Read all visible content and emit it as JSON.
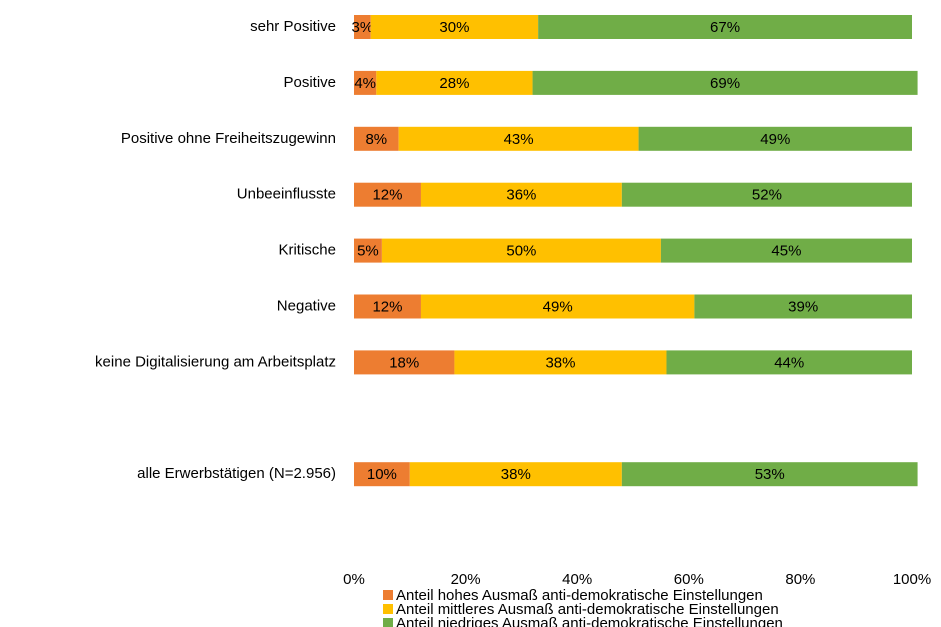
{
  "chart_data": {
    "type": "stacked_barh",
    "categories": [
      "sehr Positive",
      "Positive",
      "Positive ohne Freiheitszugewinn",
      "Unbeeinflusste",
      "Kritische",
      "Negative",
      "keine Digitalisierung am Arbeitsplatz",
      null,
      "alle Erwerbstätigen (N=2.956)"
    ],
    "series": [
      {
        "name": "Anteil hohes Ausmaß anti-demokratische Einstellungen",
        "color": "#ED7D31",
        "values": [
          3,
          4,
          8,
          12,
          5,
          12,
          18,
          null,
          10
        ],
        "value_labels": [
          "3%",
          "4%",
          "8%",
          "12%",
          "5%",
          "12%",
          "18%",
          null,
          "10%"
        ]
      },
      {
        "name": "Anteil mittleres Ausmaß anti-demokratische Einstellungen",
        "color": "#FFC000",
        "values": [
          30,
          28,
          43,
          36,
          50,
          49,
          38,
          null,
          38
        ],
        "value_labels": [
          "30%",
          "28%",
          "43%",
          "36%",
          "50%",
          "49%",
          "38%",
          null,
          "38%"
        ]
      },
      {
        "name": "Anteil niedriges Ausmaß anti-demokratische Einstellungen",
        "color": "#70AD47",
        "values": [
          67,
          69,
          49,
          52,
          45,
          39,
          44,
          null,
          53
        ],
        "value_labels": [
          "67%",
          "69%",
          "49%",
          "52%",
          "45%",
          "39%",
          "44%",
          null,
          "53%"
        ]
      }
    ],
    "xlim": [
      0,
      100
    ],
    "xticks": [
      {
        "value": 0,
        "label": "0%"
      },
      {
        "value": 20,
        "label": "20%"
      },
      {
        "value": 40,
        "label": "40%"
      },
      {
        "value": 60,
        "label": "60%"
      },
      {
        "value": 80,
        "label": "80%"
      },
      {
        "value": 100,
        "label": "100%"
      }
    ],
    "grid": false,
    "legend": "bottom"
  }
}
